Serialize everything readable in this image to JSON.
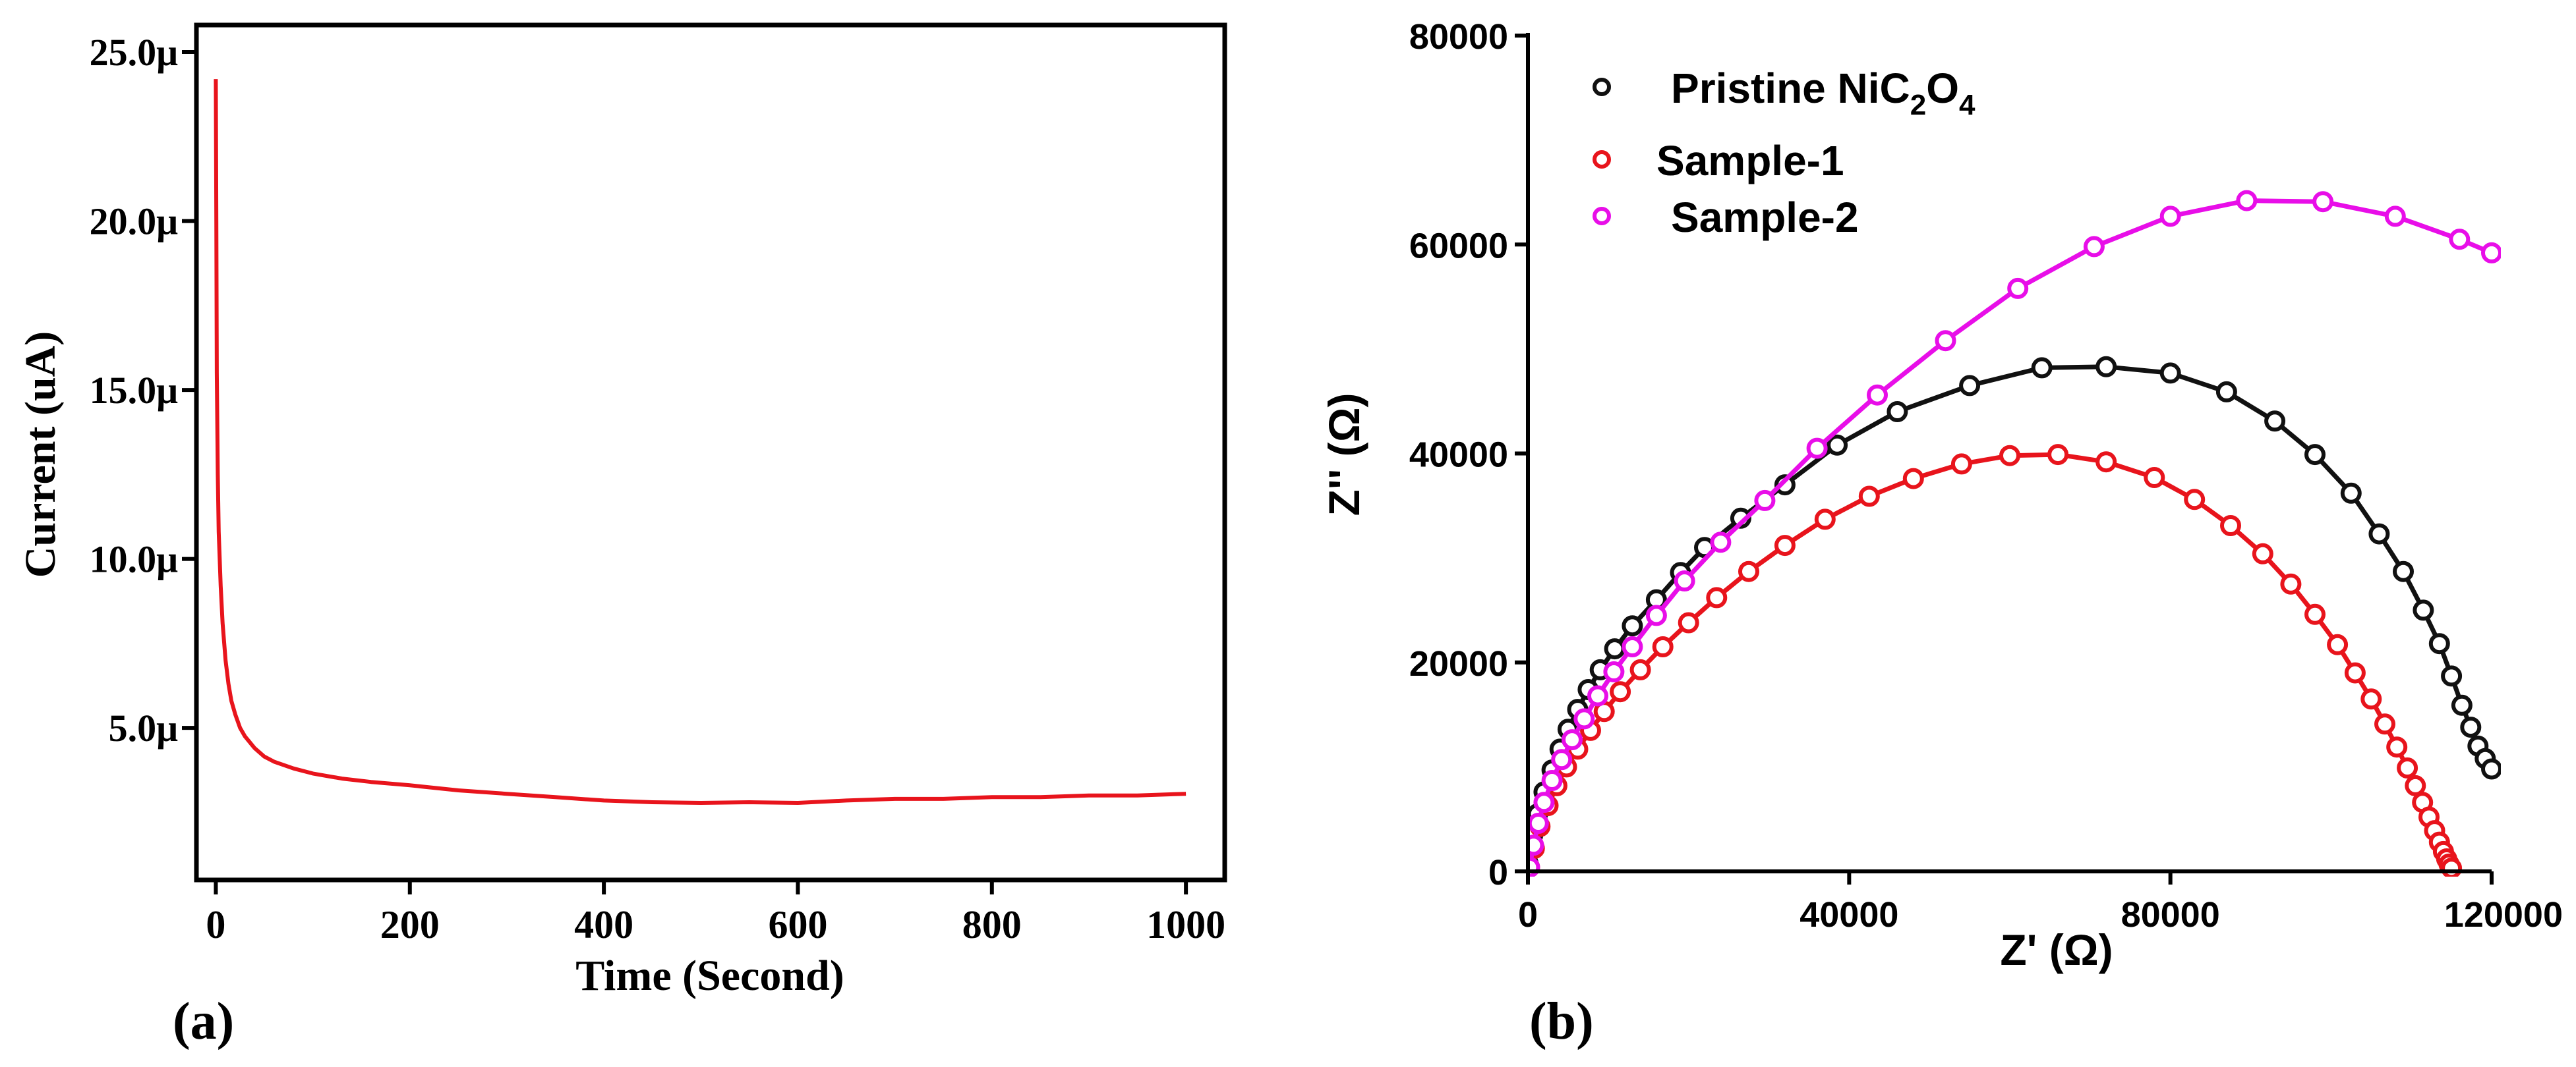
{
  "chart_data": [
    {
      "panel_label": "(a)",
      "type": "line",
      "title": "",
      "xlabel": "Time (Second)",
      "ylabel": "Current (uA)",
      "xlim": [
        -20,
        1040
      ],
      "ylim": [
        0.5,
        25.8
      ],
      "xticks": [
        0,
        200,
        400,
        600,
        800,
        1000
      ],
      "xtick_labels": [
        "0",
        "200",
        "400",
        "600",
        "800",
        "1000"
      ],
      "yticks": [
        5,
        10,
        15,
        20,
        25
      ],
      "ytick_labels": [
        "5.0μ",
        "10.0μ",
        "15.0μ",
        "20.0μ",
        "25.0μ"
      ],
      "grid": false,
      "series": [
        {
          "name": "Current",
          "color": "#e8141c",
          "x": [
            0,
            0.5,
            1,
            2,
            3,
            5,
            7,
            10,
            13,
            16,
            20,
            25,
            30,
            40,
            50,
            60,
            80,
            100,
            130,
            160,
            200,
            250,
            300,
            350,
            400,
            450,
            500,
            550,
            600,
            650,
            700,
            750,
            800,
            850,
            900,
            950,
            1000
          ],
          "y": [
            24.2,
            20.0,
            15.5,
            12.5,
            10.8,
            9.2,
            8.1,
            7.0,
            6.3,
            5.8,
            5.4,
            5.0,
            4.75,
            4.4,
            4.15,
            4.0,
            3.8,
            3.65,
            3.5,
            3.4,
            3.3,
            3.15,
            3.05,
            2.95,
            2.85,
            2.8,
            2.78,
            2.8,
            2.78,
            2.85,
            2.9,
            2.9,
            2.95,
            2.95,
            3.0,
            3.0,
            3.05
          ]
        }
      ]
    },
    {
      "panel_label": "(b)",
      "type": "scatter",
      "title": "",
      "xlabel": "Z' (Ω)",
      "ylabel": "Z'' (Ω)",
      "xlim": [
        0,
        120000
      ],
      "ylim": [
        0,
        80000
      ],
      "xticks": [
        0,
        40000,
        80000,
        120000
      ],
      "xtick_labels": [
        "0",
        "40000",
        "80000",
        "120000"
      ],
      "yticks": [
        0,
        20000,
        40000,
        60000,
        80000
      ],
      "ytick_labels": [
        "0",
        "20000",
        "40000",
        "60000",
        "80000"
      ],
      "grid": false,
      "legend_position": "top-left",
      "series": [
        {
          "name": "Pristine NiC2O4",
          "legend_main": "Pristine NiC",
          "legend_sub1": "2",
          "legend_mid": "O",
          "legend_sub2": "4",
          "color": "#111111",
          "x": [
            0,
            600,
            1200,
            2000,
            3000,
            4000,
            5000,
            6200,
            7500,
            9000,
            10800,
            13000,
            16000,
            19000,
            22000,
            26500,
            32000,
            38500,
            46000,
            55000,
            64000,
            72000,
            80000,
            87000,
            93000,
            98000,
            102500,
            106000,
            109000,
            111500,
            113500,
            115000,
            116300,
            117400,
            118300,
            119200,
            120000
          ],
          "y": [
            800,
            3500,
            5500,
            7600,
            9700,
            11700,
            13600,
            15500,
            17400,
            19300,
            21300,
            23500,
            26000,
            28600,
            31000,
            33800,
            37000,
            40800,
            44000,
            46500,
            48200,
            48300,
            47700,
            45900,
            43100,
            39900,
            36200,
            32300,
            28700,
            25000,
            21800,
            18700,
            15900,
            13800,
            12000,
            10800,
            9800
          ]
        },
        {
          "name": "Sample-1",
          "color": "#e8141c",
          "x": [
            200,
            800,
            1500,
            2500,
            3600,
            4800,
            6200,
            7800,
            9500,
            11500,
            14000,
            16800,
            20000,
            23500,
            27500,
            32000,
            37000,
            42500,
            48000,
            54000,
            60000,
            66000,
            72000,
            78000,
            83000,
            87500,
            91500,
            95000,
            98000,
            100800,
            103000,
            105000,
            106700,
            108200,
            109500,
            110500,
            111400,
            112200,
            112900,
            113500,
            114000,
            114400,
            114700,
            115000
          ],
          "y": [
            400,
            2200,
            4300,
            6300,
            8200,
            10000,
            11700,
            13500,
            15300,
            17200,
            19300,
            21500,
            23800,
            26200,
            28700,
            31200,
            33700,
            35900,
            37600,
            39000,
            39800,
            39900,
            39200,
            37700,
            35600,
            33100,
            30400,
            27500,
            24600,
            21700,
            19000,
            16500,
            14100,
            11900,
            9900,
            8200,
            6600,
            5200,
            3900,
            2800,
            1900,
            1200,
            700,
            300
          ]
        },
        {
          "name": "Sample-2",
          "color": "#e80ee8",
          "x": [
            200,
            700,
            1300,
            2000,
            3000,
            4200,
            5500,
            7000,
            8700,
            10700,
            13000,
            16000,
            19500,
            24000,
            29500,
            36000,
            43500,
            52000,
            61000,
            70500,
            80000,
            89500,
            99000,
            108000,
            116000,
            120000
          ],
          "y": [
            400,
            2500,
            4600,
            6600,
            8700,
            10700,
            12600,
            14600,
            16800,
            19100,
            21500,
            24500,
            27800,
            31500,
            35500,
            40500,
            45600,
            50800,
            55800,
            59800,
            62700,
            64200,
            64100,
            62700,
            60500,
            59200
          ]
        }
      ]
    }
  ]
}
